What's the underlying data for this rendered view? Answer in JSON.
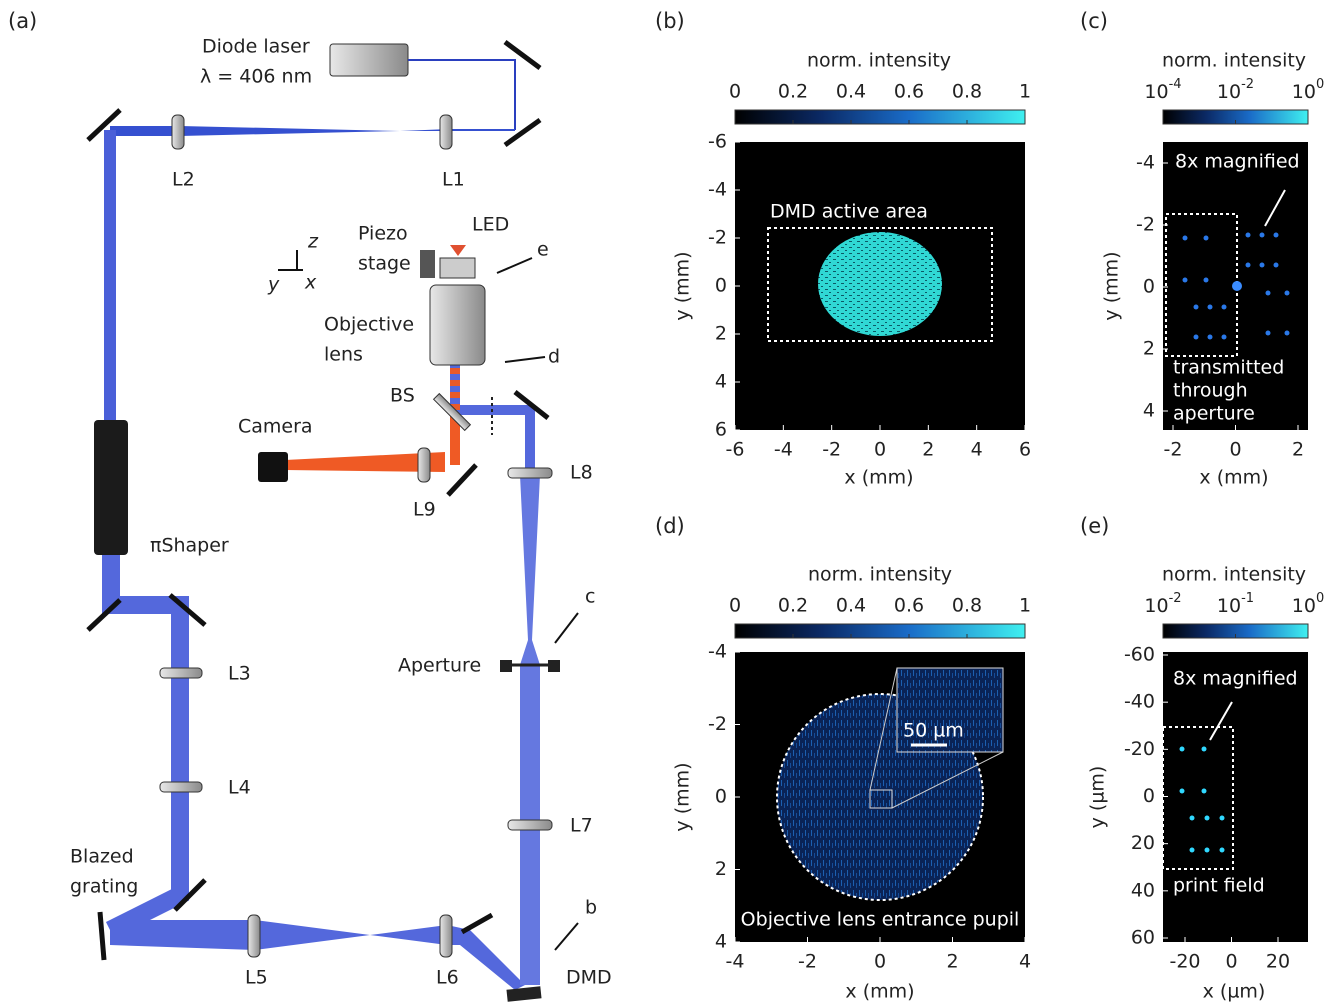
{
  "panels": {
    "a": {
      "label": "(a)",
      "texts": {
        "diode_laser": "Diode laser",
        "wavelength": "λ = 406 nm",
        "L1": "L1",
        "L2": "L2",
        "L3": "L3",
        "L4": "L4",
        "L5": "L5",
        "L6": "L6",
        "L7": "L7",
        "L8": "L8",
        "L9": "L9",
        "piezo": "Piezo",
        "stage": "stage",
        "led": "LED",
        "objective": "Objective",
        "lens": "lens",
        "bs": "BS",
        "camera": "Camera",
        "pishaper": "πShaper",
        "aperture": "Aperture",
        "blazed": "Blazed",
        "grating": "grating",
        "dmd": "DMD",
        "b": "b",
        "c": "c",
        "d": "d",
        "e": "e",
        "axis_z": "z",
        "axis_y": "y",
        "axis_x": "x"
      }
    },
    "b": {
      "label": "(b)",
      "colorbar": {
        "title": "norm. intensity",
        "ticks": [
          "0",
          "0.2",
          "0.4",
          "0.6",
          "0.8",
          "1"
        ]
      },
      "xticks": [
        "-6",
        "-4",
        "-2",
        "0",
        "2",
        "4",
        "6"
      ],
      "yticks": [
        "-6",
        "-4",
        "-2",
        "0",
        "2",
        "4",
        "6"
      ],
      "xlabel": "x (mm)",
      "ylabel": "y (mm)",
      "annotations": [
        "DMD active area"
      ]
    },
    "c": {
      "label": "(c)",
      "colorbar": {
        "title": "norm. intensity",
        "ticks": [
          {
            "base": "10",
            "exponent": "-4"
          },
          {
            "base": "10",
            "exponent": "-2"
          },
          {
            "base": "10",
            "exponent": "0"
          }
        ]
      },
      "xticks": [
        "-2",
        "0",
        "2"
      ],
      "yticks": [
        "-4",
        "-2",
        "0",
        "2",
        "4"
      ],
      "xlabel": "x (mm)",
      "ylabel": "y (mm)",
      "annotations": [
        "8x magnified",
        "transmitted",
        "through",
        "aperture"
      ]
    },
    "d": {
      "label": "(d)",
      "colorbar": {
        "title": "norm. intensity",
        "ticks": [
          "0",
          "0.2",
          "0.4",
          "0.6",
          "0.8",
          "1"
        ]
      },
      "xticks": [
        "-4",
        "-2",
        "0",
        "2",
        "4"
      ],
      "yticks": [
        "-4",
        "-2",
        "0",
        "2",
        "4"
      ],
      "xlabel": "x (mm)",
      "ylabel": "y (mm)",
      "annotations": [
        "50 µm",
        "Objective lens entrance pupil"
      ]
    },
    "e": {
      "label": "(e)",
      "colorbar": {
        "title": "norm. intensity",
        "ticks": [
          {
            "base": "10",
            "exponent": "-2"
          },
          {
            "base": "10",
            "exponent": "-1"
          },
          {
            "base": "10",
            "exponent": "0"
          }
        ]
      },
      "xticks": [
        "-20",
        "0",
        "20"
      ],
      "yticks": [
        "-60",
        "-40",
        "-20",
        "0",
        "20",
        "40",
        "60"
      ],
      "xlabel": "x (µm)",
      "ylabel": "y (µm)",
      "annotations": [
        "8x magnified",
        "print field"
      ]
    }
  }
}
